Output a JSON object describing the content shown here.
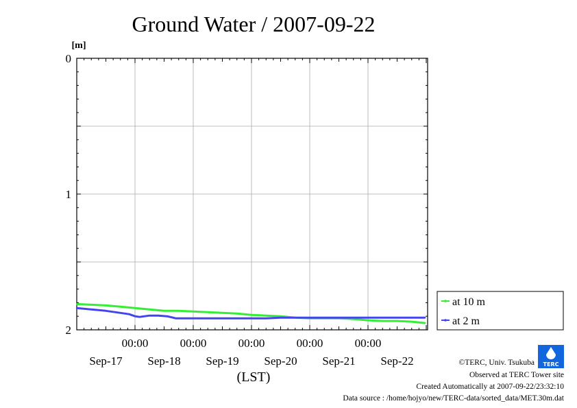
{
  "chart_data": {
    "type": "line",
    "title": "Ground Water / 2007-09-22",
    "ylabel": "[m]",
    "xlabel": "(LST)",
    "ylim": [
      0,
      2
    ],
    "y_inverted": true,
    "y_ticks": [
      "0",
      "1",
      "2"
    ],
    "x_tick_time_labels": [
      "00:00",
      "00:00",
      "00:00",
      "00:00",
      "00:00"
    ],
    "x_date_labels": [
      "Sep-17",
      "Sep-18",
      "Sep-19",
      "Sep-20",
      "Sep-21",
      "Sep-22"
    ],
    "x_range_days": [
      0,
      6
    ],
    "grid": true,
    "legend_position": "right",
    "series": [
      {
        "name": "at 10 m",
        "color": "#33ee33",
        "x": [
          0,
          0.25,
          0.5,
          0.75,
          1.0,
          1.25,
          1.5,
          1.75,
          2.0,
          2.25,
          2.5,
          2.75,
          3.0,
          3.25,
          3.5,
          3.75,
          4.0,
          4.25,
          4.5,
          4.75,
          5.0,
          5.25,
          5.5,
          5.75,
          5.98
        ],
        "y": [
          1.81,
          1.815,
          1.82,
          1.83,
          1.84,
          1.85,
          1.86,
          1.86,
          1.865,
          1.87,
          1.875,
          1.88,
          1.89,
          1.895,
          1.9,
          1.91,
          1.915,
          1.915,
          1.915,
          1.92,
          1.93,
          1.935,
          1.935,
          1.94,
          1.95
        ]
      },
      {
        "name": "at 2 m",
        "color": "#4444ee",
        "x": [
          0,
          0.25,
          0.5,
          0.75,
          0.9,
          1.0,
          1.08,
          1.25,
          1.4,
          1.55,
          1.7,
          2.0,
          2.25,
          2.5,
          2.75,
          3.0,
          3.25,
          3.5,
          3.75,
          4.0,
          4.25,
          4.5,
          4.75,
          5.0,
          5.25,
          5.5,
          5.75,
          5.98
        ],
        "y": [
          1.84,
          1.85,
          1.86,
          1.875,
          1.885,
          1.9,
          1.905,
          1.895,
          1.895,
          1.9,
          1.915,
          1.915,
          1.915,
          1.915,
          1.915,
          1.915,
          1.915,
          1.91,
          1.91,
          1.91,
          1.91,
          1.91,
          1.91,
          1.91,
          1.91,
          1.91,
          1.91,
          1.91
        ]
      }
    ]
  },
  "credits": {
    "copyright": "©TERC, Univ. Tsukuba",
    "observed": "Observed at TERC Tower site",
    "created": "Created Automatically at 2007-09-22/23:32:10",
    "source": "Data source : /home/hojyo/new/TERC-data/sorted_data/MET.30m.dat",
    "logo_text": "TERC",
    "logo_color": "#1166dd"
  }
}
